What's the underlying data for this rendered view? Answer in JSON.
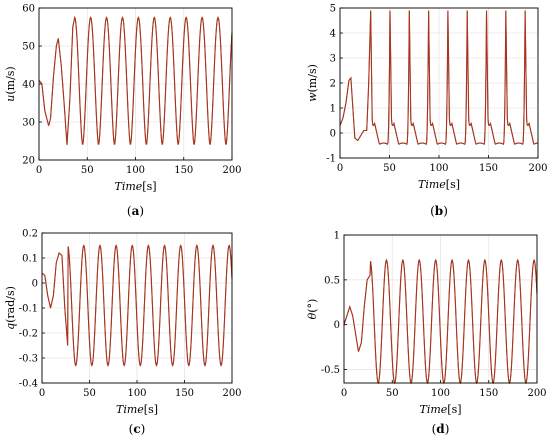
{
  "chart_data": [
    {
      "id": "a",
      "type": "line",
      "caption_letter": "a",
      "xlabel_italic": "Time",
      "xlabel_unit": "[s]",
      "ylabel_var": "u",
      "ylabel_unit": "(m/s)",
      "xlim": [
        0,
        200
      ],
      "ylim": [
        20,
        60
      ],
      "xticks": [
        0,
        50,
        100,
        150,
        200
      ],
      "yticks": [
        20,
        30,
        40,
        50,
        60
      ],
      "grid": true,
      "series": [
        {
          "color": "#b03020",
          "x": [
            0,
            3,
            6,
            10,
            12,
            15,
            18,
            20,
            23,
            26,
            29,
            32,
            35,
            37
          ],
          "y": [
            41,
            40,
            33,
            29,
            31,
            42,
            50,
            52,
            45,
            35,
            24,
            36,
            55,
            57.5
          ],
          "periodic": {
            "start": 37,
            "period": 16.5,
            "min": 24,
            "max": 57.5,
            "end": 200
          }
        }
      ]
    },
    {
      "id": "b",
      "type": "line",
      "caption_letter": "b",
      "xlabel_italic": "Time",
      "xlabel_unit": "[s]",
      "ylabel_var": "w",
      "ylabel_unit": "(m/s)",
      "xlim": [
        0,
        200
      ],
      "ylim": [
        -1,
        5
      ],
      "xticks": [
        0,
        50,
        100,
        150,
        200
      ],
      "yticks": [
        -1,
        0,
        1,
        2,
        3,
        4,
        5
      ],
      "grid": true,
      "series": [
        {
          "color": "#b03020",
          "x": [
            0,
            3,
            6,
            9,
            11,
            13,
            15,
            18,
            21,
            24,
            27,
            29,
            31
          ],
          "y": [
            0.3,
            0.6,
            1.2,
            2.1,
            2.2,
            1.0,
            -0.2,
            -0.3,
            -0.1,
            0.1,
            0.1,
            2.0,
            4.9
          ],
          "periodic": {
            "start": 31,
            "period": 19.5,
            "peak": 4.9,
            "shoulder": 0.4,
            "trough": -0.45,
            "end": 200
          }
        }
      ]
    },
    {
      "id": "c",
      "type": "line",
      "caption_letter": "c",
      "xlabel_italic": "Time",
      "xlabel_unit": "[s]",
      "ylabel_var": "q",
      "ylabel_unit": "(rad/s)",
      "xlim": [
        0,
        200
      ],
      "ylim": [
        -0.4,
        0.2
      ],
      "xticks": [
        0,
        50,
        100,
        150,
        200
      ],
      "yticks": [
        -0.4,
        -0.3,
        -0.2,
        -0.1,
        0,
        0.1,
        0.2
      ],
      "grid": true,
      "series": [
        {
          "color": "#b03020",
          "x": [
            0,
            3,
            6,
            9,
            12,
            15,
            18,
            21,
            24,
            27
          ],
          "y": [
            0.04,
            0.03,
            -0.05,
            -0.1,
            -0.05,
            0.08,
            0.12,
            0.11,
            -0.1,
            -0.25
          ],
          "periodic": {
            "start": 27,
            "period": 17,
            "max": 0.15,
            "min": -0.33,
            "notch": -0.24,
            "end": 200
          }
        }
      ]
    },
    {
      "id": "d",
      "type": "line",
      "caption_letter": "d",
      "xlabel_italic": "Time",
      "xlabel_unit": "[s]",
      "ylabel_var": "θ",
      "ylabel_unit": "(°)",
      "xlim": [
        0,
        200
      ],
      "ylim": [
        -0.65,
        1
      ],
      "xticks": [
        0,
        50,
        100,
        150,
        200
      ],
      "yticks": [
        -0.5,
        0,
        0.5,
        1
      ],
      "grid": true,
      "series": [
        {
          "color": "#b03020",
          "x": [
            0,
            3,
            6,
            9,
            12,
            15,
            18,
            21,
            24,
            27
          ],
          "y": [
            0.0,
            0.1,
            0.2,
            0.1,
            -0.1,
            -0.3,
            -0.2,
            0.2,
            0.5,
            0.55
          ],
          "periodic": {
            "start": 27,
            "period": 17,
            "max": 0.72,
            "min": -0.65,
            "end": 200
          }
        }
      ]
    }
  ]
}
